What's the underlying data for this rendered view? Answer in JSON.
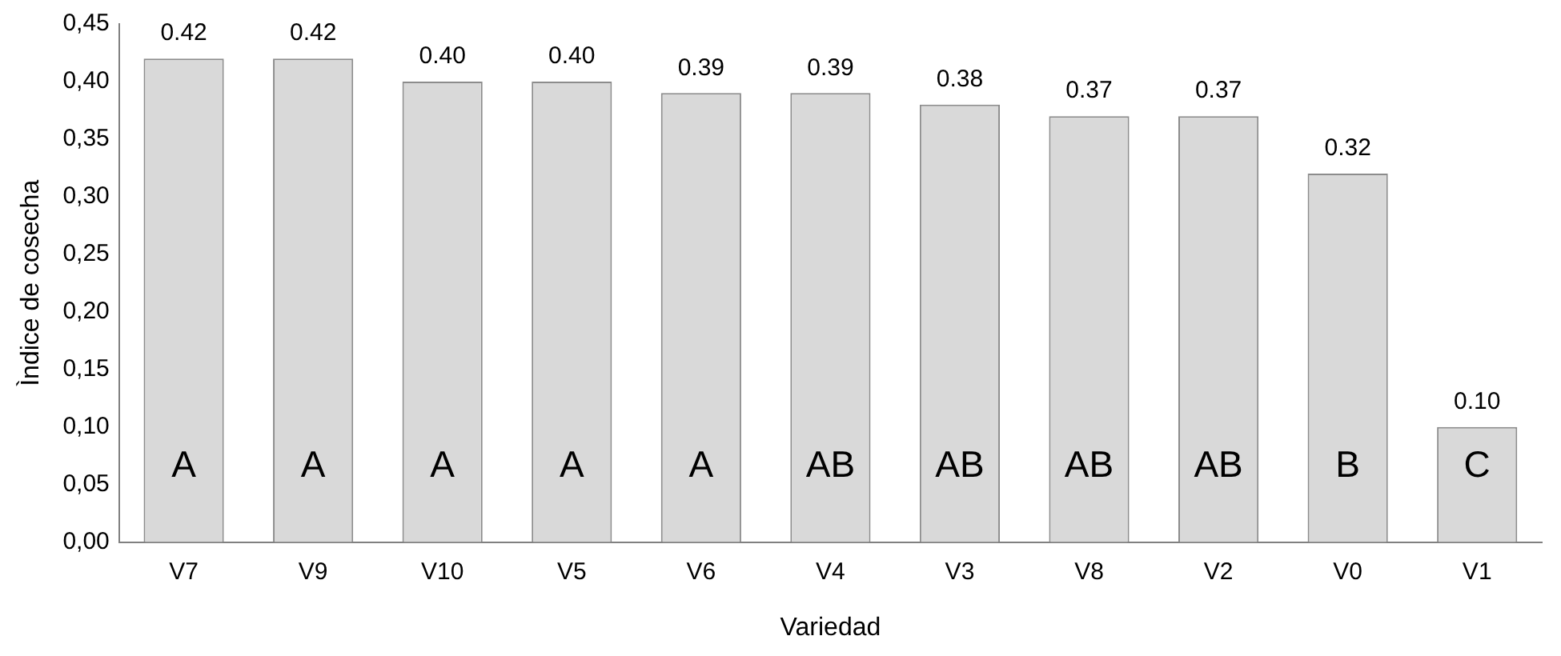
{
  "chart_data": {
    "type": "bar",
    "xlabel": "Variedad",
    "ylabel": "Ìndice de cosecha",
    "categories": [
      "V7",
      "V9",
      "V10",
      "V5",
      "V6",
      "V4",
      "V3",
      "V8",
      "V2",
      "V0",
      "V1"
    ],
    "values": [
      0.42,
      0.42,
      0.4,
      0.4,
      0.39,
      0.39,
      0.38,
      0.37,
      0.37,
      0.32,
      0.1
    ],
    "value_labels": [
      "0.42",
      "0.42",
      "0.40",
      "0.40",
      "0.39",
      "0.39",
      "0.38",
      "0.37",
      "0.37",
      "0.32",
      "0.10"
    ],
    "color": "#d9d9d9",
    "ylim": [
      0,
      0.45
    ],
    "yticks": [
      {
        "value": 0,
        "label": "0,00"
      },
      {
        "value": 0.05,
        "label": "0,05"
      },
      {
        "value": 0.1,
        "label": "0,10"
      },
      {
        "value": 0.15,
        "label": "0,15"
      },
      {
        "value": 0.2,
        "label": "0,20"
      },
      {
        "value": 0.25,
        "label": "0,25"
      },
      {
        "value": 0.3,
        "label": "0,30"
      },
      {
        "value": 0.35,
        "label": "0,35"
      },
      {
        "value": 0.4,
        "label": "0,40"
      },
      {
        "value": 0.45,
        "label": "0,45"
      }
    ],
    "annotations": [
      "A",
      "A",
      "A",
      "A",
      "A",
      "AB",
      "AB",
      "AB",
      "AB",
      "B",
      "C"
    ],
    "grid": false,
    "legend": false
  }
}
